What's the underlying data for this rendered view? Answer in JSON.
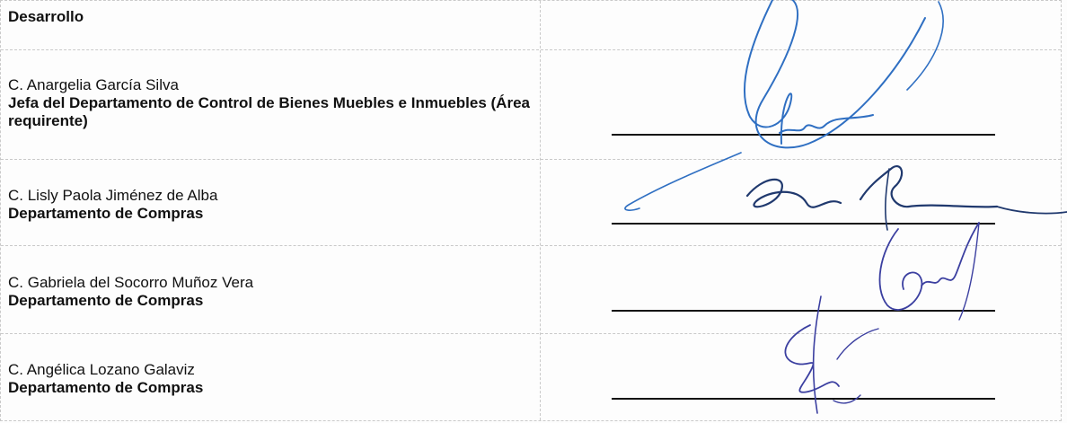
{
  "section": {
    "heading": "Desarrollo"
  },
  "signatories": [
    {
      "name": "C. Anargelia García Silva",
      "role": "Jefa del Departamento de Control de Bienes Muebles e Inmuebles (Área requirente)"
    },
    {
      "name": "C. Lisly Paola Jiménez de Alba",
      "role": "Departamento de Compras"
    },
    {
      "name": "C. Gabriela del Socorro Muñoz Vera",
      "role": "Departamento de Compras"
    },
    {
      "name": "C. Angélica Lozano Galaviz",
      "role": "Departamento de Compras"
    }
  ],
  "colors": {
    "ink": "#2f6fc2",
    "text": "#111111",
    "grid": "#c9c9c9"
  }
}
